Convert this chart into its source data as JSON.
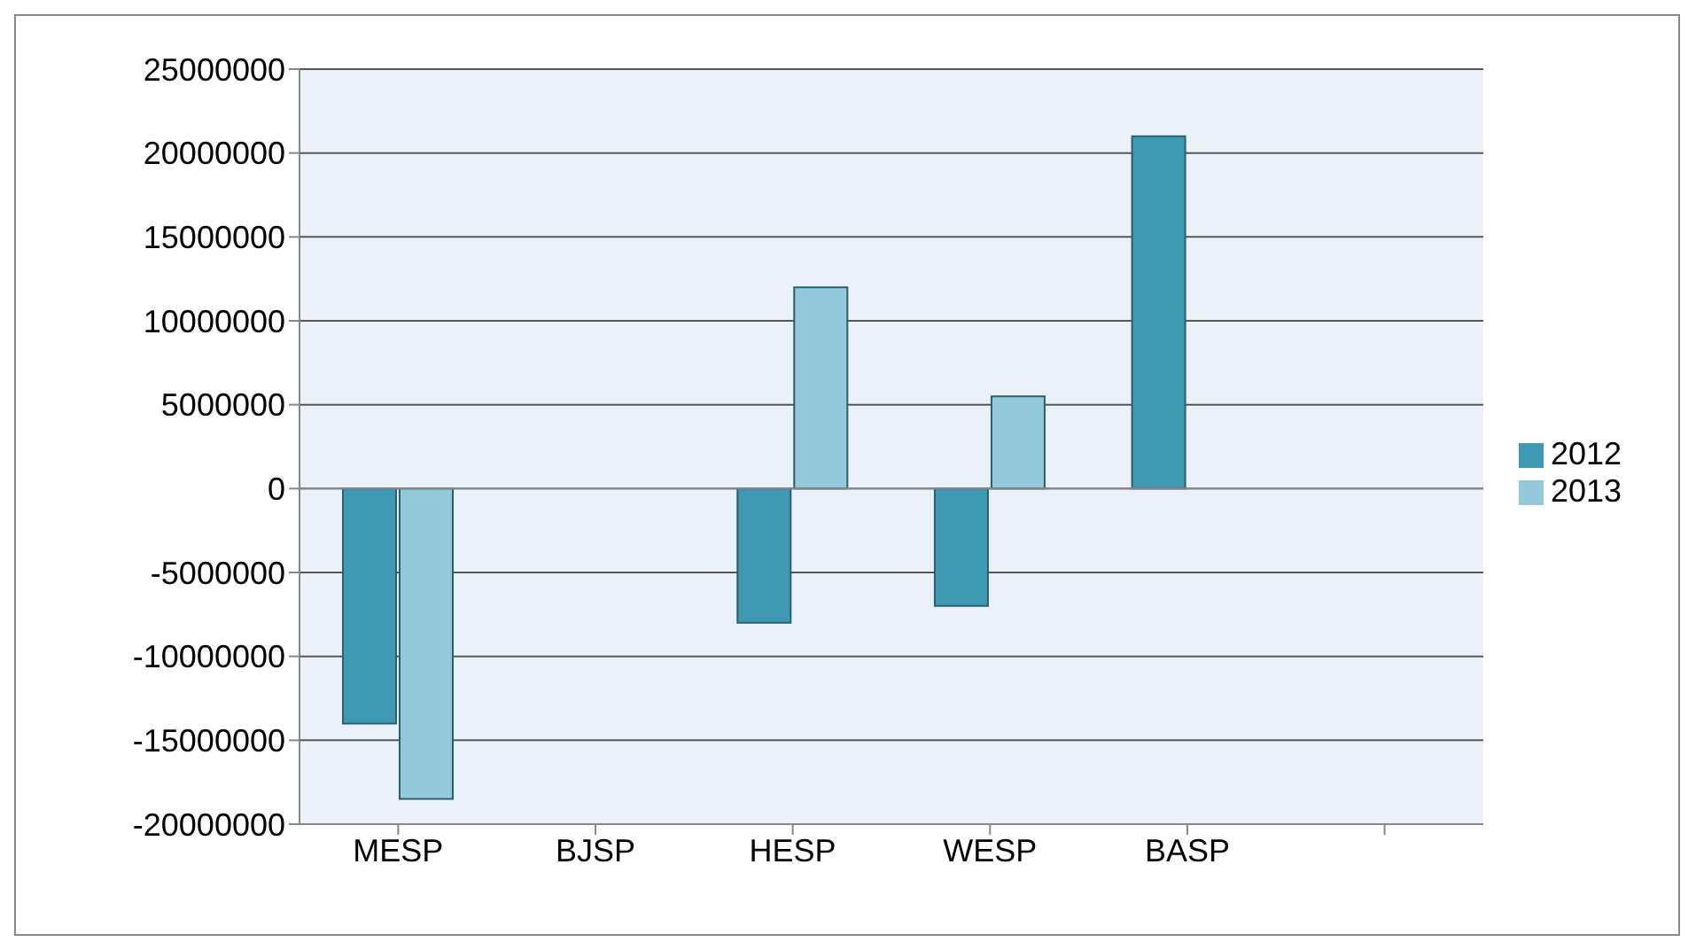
{
  "chart_data": {
    "type": "bar",
    "categories": [
      "MESP",
      "BJSP",
      "HESP",
      "WESP",
      "BASP",
      null
    ],
    "series": [
      {
        "name": "2012",
        "color": "#3e9ab3",
        "values": [
          -14000000,
          0,
          -8000000,
          -7000000,
          21000000,
          null
        ]
      },
      {
        "name": "2013",
        "color": "#93c9da",
        "values": [
          -18500000,
          0,
          12000000,
          5500000,
          0,
          null
        ]
      }
    ],
    "ylim": [
      -20000000,
      25000000
    ],
    "yticks": [
      -20000000,
      -15000000,
      -10000000,
      -5000000,
      0,
      5000000,
      10000000,
      15000000,
      20000000,
      25000000
    ],
    "grid": "y",
    "legend": "right"
  }
}
